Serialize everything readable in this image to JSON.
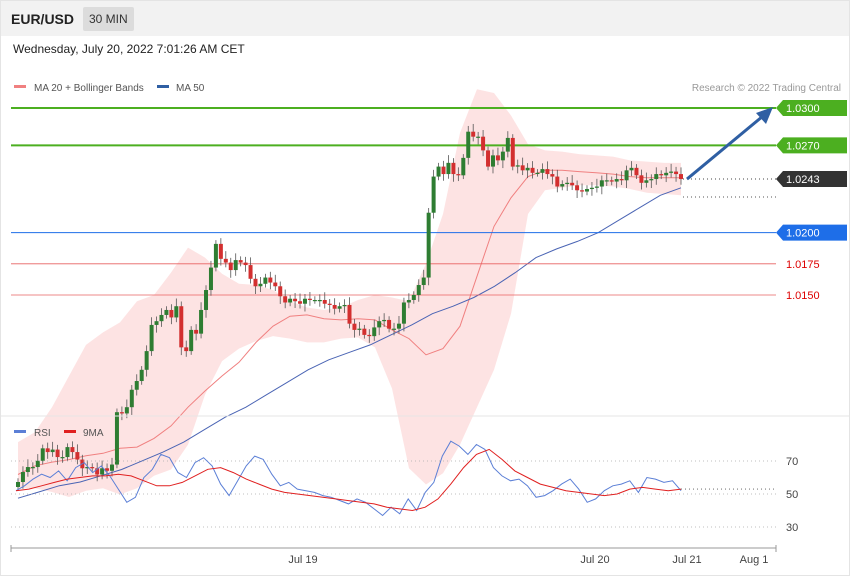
{
  "header": {
    "pair": "EUR/USD",
    "timeframe": "30 MIN"
  },
  "datetime": "Wednesday, July 20, 2022 7:01:26 AM CET",
  "legend": {
    "bollinger": "MA 20 + Bollinger Bands",
    "ma50": "MA 50",
    "rsi": "RSI",
    "rsi_ma": "9MA"
  },
  "credit": "Research © 2022 Trading Central",
  "colors": {
    "bull": "#2e7d32",
    "bear": "#d32f2f",
    "ma20": "#f08080",
    "band_fill": "#fde0e0",
    "ma50": "#4a64b4",
    "target": "#4caf20",
    "support_strong": "#1e6ee8",
    "support_weak": "#e86060",
    "arrow": "#2f5fa3",
    "rsi": "#5b7fd6",
    "rsi_ma": "#e02020"
  },
  "chart_data": [
    {
      "type": "candlestick",
      "title": "",
      "price_range": [
        0.9975,
        1.0325
      ],
      "x_ticks": [
        "Jul 19",
        "Jul 20",
        "Jul 21",
        "Aug 1"
      ],
      "levels": [
        {
          "label": "1.0300",
          "value": 1.03,
          "style": "target"
        },
        {
          "label": "1.0270",
          "value": 1.027,
          "style": "target"
        },
        {
          "label": "1.0243",
          "value": 1.0243,
          "style": "current"
        },
        {
          "label": "1.0200",
          "value": 1.02,
          "style": "support_strong"
        },
        {
          "label": "1.0175",
          "value": 1.0175,
          "style": "support_weak"
        },
        {
          "label": "1.0150",
          "value": 1.015,
          "style": "support_weak"
        }
      ],
      "closes": [
        1.0,
        1.0008,
        1.0012,
        1.0012,
        1.0017,
        1.0027,
        1.0024,
        1.0026,
        1.002,
        1.002,
        1.0028,
        1.0024,
        1.0018,
        1.0011,
        1.0012,
        1.0011,
        1.0006,
        1.0011,
        1.0009,
        1.0014,
        1.0056,
        1.0055,
        1.006,
        1.0074,
        1.0081,
        1.009,
        1.0105,
        1.0126,
        1.0129,
        1.0134,
        1.0138,
        1.0132,
        1.0141,
        1.0108,
        1.0105,
        1.0122,
        1.0119,
        1.0138,
        1.0154,
        1.0172,
        1.0191,
        1.0179,
        1.0176,
        1.017,
        1.0178,
        1.0176,
        1.0174,
        1.0163,
        1.0157,
        1.0159,
        1.0164,
        1.016,
        1.0157,
        1.0149,
        1.0144,
        1.0147,
        1.0145,
        1.0143,
        1.0147,
        1.0146,
        1.0146,
        1.0146,
        1.0143,
        1.0142,
        1.0139,
        1.0141,
        1.0142,
        1.0127,
        1.0122,
        1.0123,
        1.0118,
        1.0117,
        1.0124,
        1.0129,
        1.013,
        1.0123,
        1.0123,
        1.0127,
        1.0144,
        1.0146,
        1.015,
        1.0158,
        1.0164,
        1.0216,
        1.0245,
        1.0253,
        1.0247,
        1.0256,
        1.0247,
        1.0246,
        1.026,
        1.0281,
        1.0277,
        1.0277,
        1.0266,
        1.0253,
        1.0262,
        1.0258,
        1.0265,
        1.0276,
        1.0253,
        1.0254,
        1.025,
        1.0252,
        1.0248,
        1.0248,
        1.0251,
        1.0247,
        1.0245,
        1.0237,
        1.0239,
        1.024,
        1.0238,
        1.0234,
        1.0233,
        1.0235,
        1.0236,
        1.0237,
        1.0242,
        1.0242,
        1.0241,
        1.0243,
        1.0242,
        1.025,
        1.0252,
        1.0246,
        1.024,
        1.0242,
        1.0243,
        1.0247,
        1.0246,
        1.0248,
        1.0249,
        1.0247,
        1.0243
      ],
      "ma20": [
        1.0006,
        1.0013,
        1.0016,
        1.0018,
        1.0021,
        1.0023,
        1.0027,
        1.0028,
        1.0035,
        1.0045,
        1.006,
        1.0073,
        1.0085,
        1.0096,
        1.0112,
        1.0125,
        1.0133,
        1.0134,
        1.0131,
        1.013,
        1.0131,
        1.013,
        1.0122,
        1.0115,
        1.0102,
        1.0107,
        1.0125,
        1.0165,
        1.0205,
        1.0228,
        1.0245,
        1.025,
        1.025,
        1.0249,
        1.0248,
        1.0247,
        1.0245,
        1.0244,
        1.0244,
        1.0244
      ],
      "band_upper": [
        1.0032,
        1.004,
        1.006,
        1.0085,
        1.011,
        1.012,
        1.0128,
        1.0145,
        1.015,
        1.0168,
        1.0188,
        1.018,
        1.0167,
        1.0159,
        1.0158,
        1.0154,
        1.0145,
        1.014,
        1.0138,
        1.014,
        1.0146,
        1.015,
        1.0148,
        1.0145,
        1.0175,
        1.0215,
        1.028,
        1.0315,
        1.0312,
        1.0294,
        1.0271,
        1.0266,
        1.0265,
        1.0263,
        1.0262,
        1.0261,
        1.0258,
        1.0257,
        1.0256,
        1.0256
      ],
      "band_lower": [
        0.9995,
        0.9995,
        0.9992,
        0.9988,
        0.9993,
        0.9995,
        0.999,
        0.9995,
        1.0005,
        1.001,
        1.003,
        1.007,
        1.0097,
        1.0107,
        1.0113,
        1.0117,
        1.0115,
        1.0112,
        1.0112,
        1.0115,
        1.0116,
        1.0108,
        1.0075,
        1.0011,
        0.9998,
        1.0007,
        1.003,
        1.006,
        1.009,
        1.0135,
        1.0215,
        1.0234,
        1.0236,
        1.0238,
        1.0238,
        1.0237,
        1.0235,
        1.0232,
        1.0231,
        1.023
      ],
      "ma50": [
        0.9987,
        0.9992,
        0.9997,
        1.0,
        1.0005,
        1.001,
        1.0017,
        1.0024,
        1.0032,
        1.0042,
        1.0052,
        1.006,
        1.007,
        1.008,
        1.009,
        1.0098,
        1.0104,
        1.011,
        1.0118,
        1.0126,
        1.0135,
        1.0141,
        1.0148,
        1.0157,
        1.0168,
        1.018,
        1.0187,
        1.0193,
        1.02,
        1.021,
        1.022,
        1.023,
        1.0236
      ],
      "forecast_arrow": {
        "from": 1.0243,
        "to": 1.03
      }
    },
    {
      "type": "line",
      "title": "",
      "yticks": [
        "70",
        "50",
        "30"
      ],
      "ylim": [
        20,
        85
      ],
      "series": [
        {
          "name": "RSI",
          "values": [
            52,
            55,
            59,
            62,
            60,
            64,
            58,
            66,
            69,
            63,
            67,
            61,
            53,
            45,
            48,
            60,
            65,
            74,
            72,
            63,
            60,
            69,
            72,
            67,
            56,
            49,
            58,
            67,
            73,
            71,
            62,
            55,
            57,
            53,
            52,
            51,
            49,
            48,
            46,
            44,
            47,
            45,
            41,
            37,
            42,
            38,
            47,
            40,
            51,
            57,
            73,
            82,
            79,
            74,
            80,
            77,
            66,
            61,
            58,
            59,
            55,
            48,
            49,
            52,
            56,
            59,
            53,
            45,
            47,
            52,
            55,
            56,
            58,
            51,
            60,
            59,
            57,
            58,
            52
          ]
        },
        {
          "name": "9MA",
          "values": [
            52,
            53,
            55,
            57,
            59,
            60,
            61,
            61,
            62,
            61,
            58,
            55,
            55,
            57,
            61,
            65,
            66,
            63,
            59,
            56,
            53,
            51,
            50,
            49,
            48,
            47,
            46,
            45,
            44,
            42,
            41,
            40,
            42,
            47,
            56,
            66,
            74,
            77,
            71,
            64,
            60,
            56,
            54,
            52,
            51,
            50,
            49,
            50,
            53,
            54,
            53,
            52,
            53
          ]
        }
      ]
    }
  ]
}
